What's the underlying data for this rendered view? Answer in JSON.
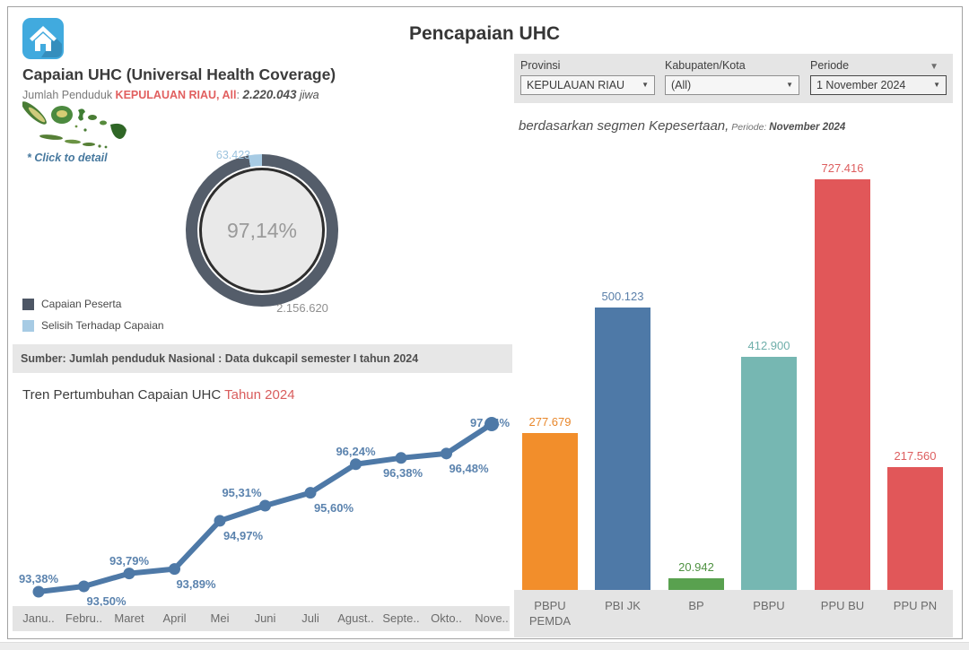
{
  "page": {
    "title": "Pencapaian UHC"
  },
  "left": {
    "title": "Capaian UHC (Universal Health Coverage)",
    "subtitle_prefix": "Jumlah Penduduk ",
    "subtitle_region": "KEPULAUAN RIAU, All",
    "subtitle_colon": ":  ",
    "subtitle_value": "2.220.043",
    "subtitle_unit": " jiwa",
    "click_hint": "* Click to detail",
    "legend": [
      {
        "label": "Capaian Peserta",
        "color": "#4d5665"
      },
      {
        "label": "Selisih Terhadap Capaian",
        "color": "#a7cbe4"
      }
    ],
    "source_note": "Sumber: Jumlah penduduk Nasional : Data dukcapil semester I tahun 2024",
    "trend_title": "Tren Pertumbuhan Capaian UHC ",
    "trend_title_highlight": "Tahun 2024"
  },
  "filters": {
    "items": [
      {
        "label": "Provinsi",
        "value": "KEPULAUAN RIAU"
      },
      {
        "label": "Kabupaten/Kota",
        "value": "(All)"
      },
      {
        "label": "Periode",
        "value": "1 November 2024"
      }
    ]
  },
  "right": {
    "subtitle_main": "berdasarkan segmen Kepesertaan,",
    "subtitle_periode_label": " Periode: ",
    "subtitle_periode_value": " November 2024"
  },
  "chart_data": [
    {
      "id": "uhc-donut",
      "type": "pie",
      "center_label": "97,14%",
      "slices": [
        {
          "label": "Capaian Peserta",
          "value": 2156620,
          "pct": 97.14,
          "color": "#545d6a",
          "data_label": "2.156.620"
        },
        {
          "label": "Selisih Terhadap Capaian",
          "value": 63423,
          "pct": 2.86,
          "color": "#a7cbe4",
          "data_label": "63.423"
        }
      ]
    },
    {
      "id": "uhc-trend-line",
      "type": "line",
      "title": "Tren Pertumbuhan Capaian UHC Tahun 2024",
      "categories": [
        "Janu..",
        "Febru..",
        "Maret",
        "April",
        "Mei",
        "Juni",
        "Juli",
        "Agust..",
        "Septe..",
        "Okto..",
        "Nove.."
      ],
      "values": [
        93.38,
        93.5,
        93.79,
        93.89,
        94.97,
        95.31,
        95.6,
        96.24,
        96.38,
        96.48,
        97.14
      ],
      "labels": [
        "93,38%",
        "93,50%",
        "93,79%",
        "93,89%",
        "94,97%",
        "95,31%",
        "95,60%",
        "96,24%",
        "96,38%",
        "96,48%",
        "97,14%"
      ],
      "line_color": "#4e79a7",
      "label_color": "#5b83ae",
      "ylim": [
        93.2,
        97.4
      ],
      "grid": false,
      "legend_position": "none"
    },
    {
      "id": "segmen-kepesertaan-bar",
      "type": "bar",
      "title": "berdasarkan segmen Kepesertaan, Periode: November 2024",
      "categories": [
        "PBPU PEMDA",
        "PBI JK",
        "BP",
        "PBPU",
        "PPU BU",
        "PPU PN"
      ],
      "values": [
        277679,
        500123,
        20942,
        412900,
        727416,
        217560
      ],
      "labels": [
        "277.679",
        "500.123",
        "20.942",
        "412.900",
        "727.416",
        "217.560"
      ],
      "colors": [
        "#f28e2b",
        "#4e79a7",
        "#59a14f",
        "#76b7b2",
        "#e15759",
        "#e15759"
      ],
      "label_colors": [
        "#e8872b",
        "#5a7fa9",
        "#4f9242",
        "#6fafaa",
        "#dd5e5f",
        "#dd5e5f"
      ],
      "ylim": [
        0,
        760000
      ],
      "grid": false,
      "legend_position": "none"
    }
  ]
}
